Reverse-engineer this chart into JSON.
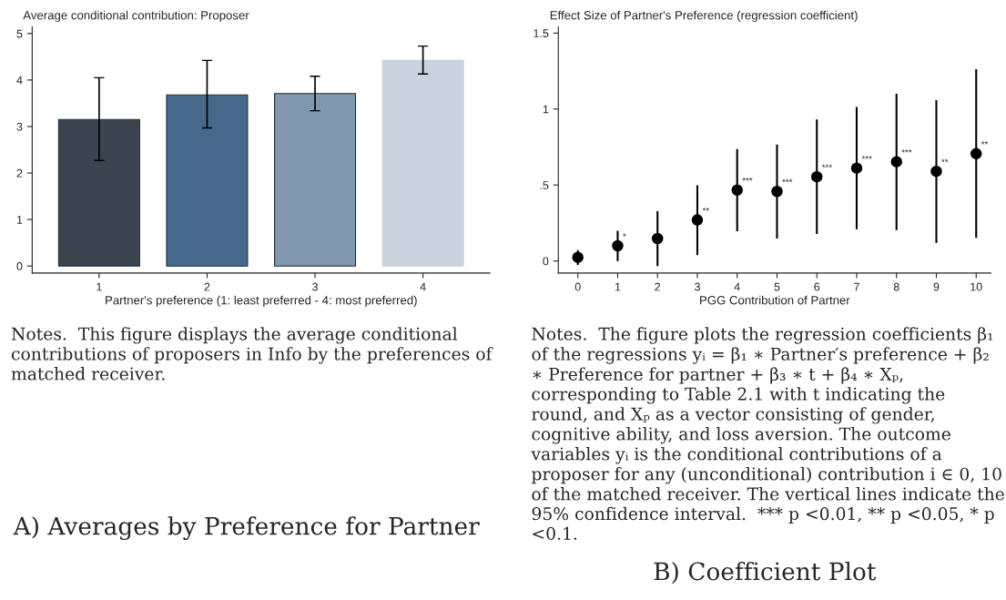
{
  "chart_data": [
    {
      "type": "bar",
      "title": "Average conditional contribution: Proposer",
      "xlabel": "Partner's preference (1: least preferred - 4: most preferred)",
      "categories": [
        "1",
        "2",
        "3",
        "4"
      ],
      "values": [
        3.15,
        3.68,
        3.71,
        4.42
      ],
      "colors": [
        "#3a4550",
        "#486a8a",
        "#8097ae",
        "#c8d3de"
      ],
      "errors": [
        [
          2.27,
          4.05
        ],
        [
          2.97,
          4.42
        ],
        [
          3.34,
          4.08
        ],
        [
          4.13,
          4.73
        ]
      ],
      "ylim": [
        -0.15,
        5.14
      ],
      "yticks": [
        0,
        1,
        2,
        3,
        4,
        5
      ],
      "grid": false,
      "legend": false,
      "annotations": [
        "Notes.  This figure displays the average conditional contributions of proposers in Info by the preferences of matched receiver.",
        "A) Averages by Preference for Partner"
      ]
    },
    {
      "type": "scatter",
      "title": "Effect Size of Partner's Preference (regression coefficient)",
      "xlabel": "PGG Contribution of Partner",
      "x": [
        0,
        1,
        2,
        3,
        4,
        5,
        6,
        7,
        8,
        9,
        10
      ],
      "values": [
        0.024,
        0.1,
        0.148,
        0.27,
        0.467,
        0.458,
        0.554,
        0.611,
        0.653,
        0.59,
        0.706
      ],
      "color": "#000000",
      "marker": "circle",
      "errors": [
        [
          -0.026,
          0.071
        ],
        [
          0.0,
          0.199
        ],
        [
          -0.034,
          0.327
        ],
        [
          0.039,
          0.499
        ],
        [
          0.195,
          0.736
        ],
        [
          0.148,
          0.767
        ],
        [
          0.178,
          0.931
        ],
        [
          0.209,
          1.014
        ],
        [
          0.203,
          1.1
        ],
        [
          0.12,
          1.059
        ],
        [
          0.152,
          1.262
        ]
      ],
      "value_labels": [
        null,
        "*",
        null,
        "**",
        "***",
        "***",
        "***",
        "***",
        "***",
        "**",
        "**"
      ],
      "xlim": [
        -0.49,
        10.37
      ],
      "xticks": [
        0,
        1,
        2,
        3,
        4,
        5,
        6,
        7,
        8,
        9,
        10
      ],
      "ylim": [
        -0.079,
        1.54
      ],
      "yticks": [
        0,
        {
          "value": 0.5,
          "label": ".5"
        },
        1,
        1.5
      ],
      "grid": false,
      "legend": false,
      "annotations": [
        "Notes.  The figure plots the regression coefficients β₁ of the regressions yᵢ = β₁ ∗ Partner′s preference + β₂ ∗ Preference for partner + β₃ ∗ t + β₄ ∗ Xₚ, corresponding to Table 2.1 with t indicating the round, and Xₚ as a vector consisting of gender, cognitive ability, and loss aversion. The outcome variables yᵢ is the conditional contributions of a proposer for any (unconditional) contribution i ∈ 0, 10 of the matched receiver. The vertical lines indicate the 95% confidence interval.  *** p <0.01, ** p <0.05, * p <0.1.",
        "B) Coefficient Plot"
      ]
    }
  ]
}
